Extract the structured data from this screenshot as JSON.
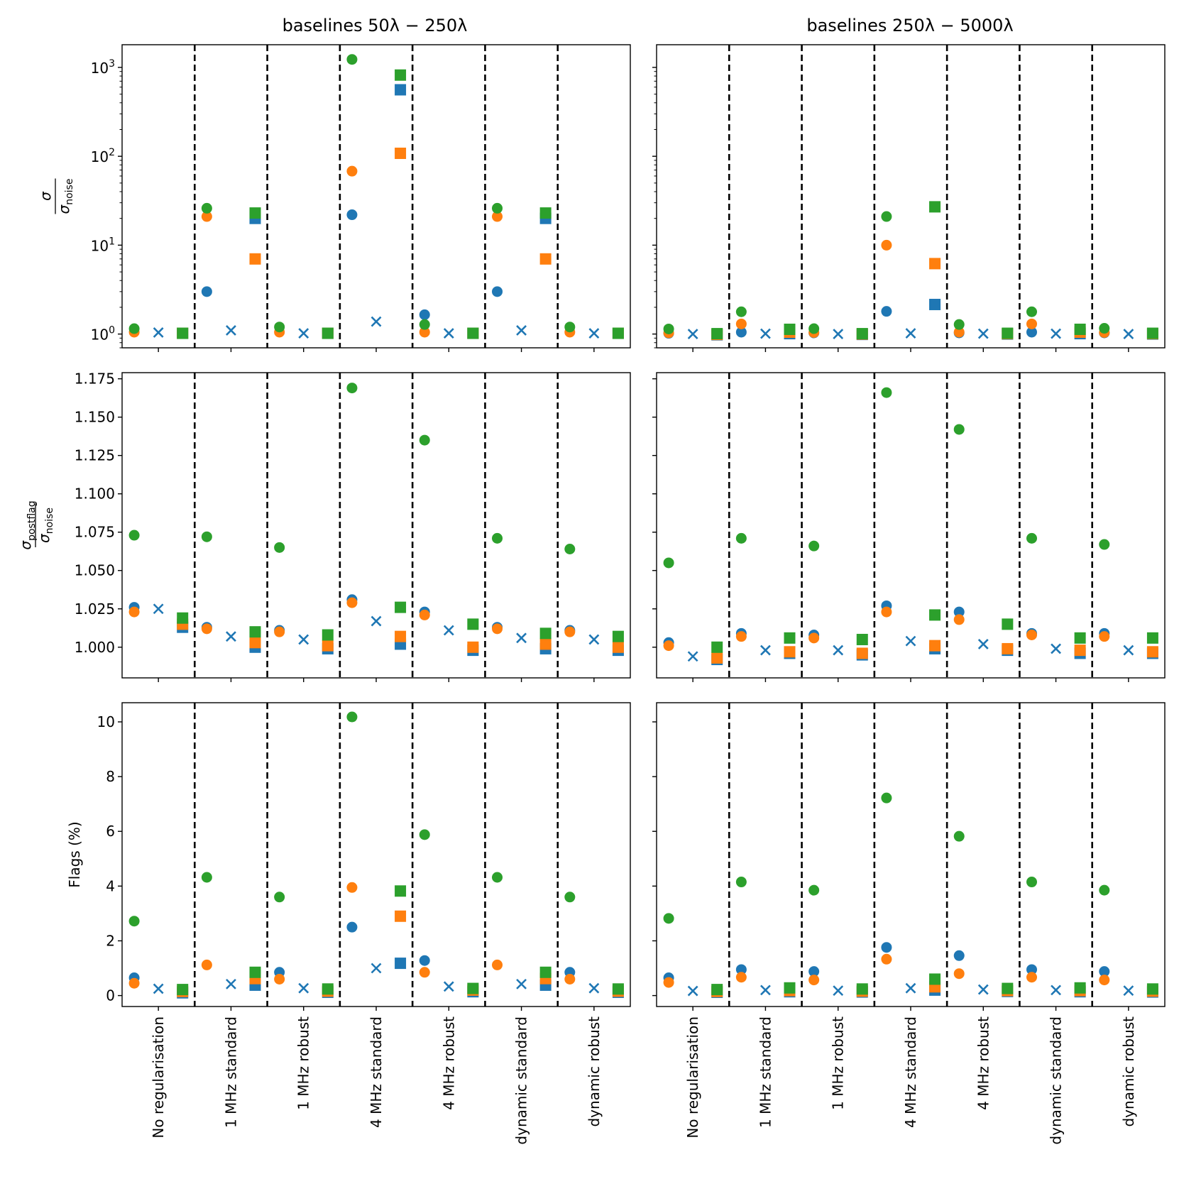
{
  "chart_data": {
    "type": "scatter",
    "columns": [
      {
        "id": "low",
        "title": "baselines 50λ − 250λ"
      },
      {
        "id": "high",
        "title": "baselines 250λ − 5000λ"
      }
    ],
    "categories": [
      "No regularisation",
      "1 MHz standard",
      "1 MHz robust",
      "4 MHz standard",
      "4 MHz robust",
      "dynamic standard",
      "dynamic robust"
    ],
    "marker_colors": {
      "blue": "#1f77b4",
      "orange": "#ff7f0e",
      "green": "#2ca02c"
    },
    "rows": [
      {
        "id": "sigma",
        "ylabel_num": "σ",
        "ylabel_den": "σ",
        "ylabel_den_sub": "noise",
        "scale": "log",
        "ylim": [
          0.7,
          1800
        ],
        "yticks": [
          {
            "v": 1,
            "base": "10",
            "exp": "0"
          },
          {
            "v": 10,
            "base": "10",
            "exp": "1"
          },
          {
            "v": 100,
            "base": "10",
            "exp": "2"
          },
          {
            "v": 1000,
            "base": "10",
            "exp": "3"
          }
        ],
        "show_tick_labels": [
          true,
          false
        ]
      },
      {
        "id": "postflag",
        "ylabel_num": "σ",
        "ylabel_num_sub": "postflag",
        "ylabel_den": "σ",
        "ylabel_den_sub": "noise",
        "scale": "linear",
        "ylim": [
          0.98,
          1.179
        ],
        "yticks": [
          {
            "v": 1.0,
            "label": "1.000"
          },
          {
            "v": 1.025,
            "label": "1.025"
          },
          {
            "v": 1.05,
            "label": "1.050"
          },
          {
            "v": 1.075,
            "label": "1.075"
          },
          {
            "v": 1.1,
            "label": "1.100"
          },
          {
            "v": 1.125,
            "label": "1.125"
          },
          {
            "v": 1.15,
            "label": "1.150"
          },
          {
            "v": 1.175,
            "label": "1.175"
          }
        ],
        "show_tick_labels": [
          true,
          false
        ]
      },
      {
        "id": "flags",
        "ylabel": "Flags (%)",
        "scale": "linear",
        "ylim": [
          -0.4,
          10.7
        ],
        "yticks": [
          {
            "v": 0,
            "label": "0"
          },
          {
            "v": 2,
            "label": "2"
          },
          {
            "v": 4,
            "label": "4"
          },
          {
            "v": 6,
            "label": "6"
          },
          {
            "v": 8,
            "label": "8"
          },
          {
            "v": 10,
            "label": "10"
          }
        ],
        "show_tick_labels": [
          true,
          false
        ]
      }
    ],
    "panels": {
      "sigma": {
        "low": {
          "circles": {
            "blue": [
              null,
              3.0,
              null,
              22,
              1.65,
              3.0,
              null
            ],
            "orange": [
              1.05,
              21,
              1.05,
              68,
              1.05,
              21,
              1.05
            ],
            "green": [
              1.15,
              26,
              1.2,
              1230,
              1.28,
              26,
              1.2
            ]
          },
          "x": [
            1.04,
            1.1,
            1.02,
            1.38,
            1.02,
            1.1,
            1.02
          ],
          "squares": {
            "blue": [
              1.02,
              20,
              1.02,
              560,
              1.02,
              20,
              1.02
            ],
            "orange": [
              1.02,
              7.0,
              1.02,
              108,
              1.02,
              7.0,
              1.02
            ],
            "green": [
              1.02,
              23,
              1.02,
              820,
              1.02,
              23,
              1.02
            ]
          }
        },
        "high": {
          "circles": {
            "blue": [
              1.02,
              1.05,
              1.03,
              1.8,
              1.03,
              1.05,
              1.03
            ],
            "orange": [
              1.03,
              1.3,
              1.04,
              10,
              1.05,
              1.3,
              1.04
            ],
            "green": [
              1.14,
              1.78,
              1.15,
              21,
              1.28,
              1.78,
              1.16
            ]
          },
          "x": [
            1.0,
            1.01,
            1.0,
            1.02,
            1.01,
            1.01,
            1.0
          ],
          "squares": {
            "blue": [
              0.98,
              1.01,
              0.99,
              2.15,
              1.0,
              1.01,
              1.0
            ],
            "orange": [
              0.99,
              1.05,
              1.0,
              6.2,
              1.01,
              1.05,
              1.01
            ],
            "green": [
              1.01,
              1.13,
              1.01,
              27,
              1.02,
              1.13,
              1.02
            ]
          }
        }
      },
      "postflag": {
        "low": {
          "circles": {
            "blue": [
              1.026,
              1.013,
              1.011,
              1.031,
              1.023,
              1.013,
              1.011
            ],
            "orange": [
              1.023,
              1.012,
              1.01,
              1.029,
              1.021,
              1.012,
              1.01
            ],
            "green": [
              1.073,
              1.072,
              1.065,
              1.169,
              1.135,
              1.071,
              1.064
            ]
          },
          "x": [
            1.025,
            1.007,
            1.005,
            1.017,
            1.011,
            1.006,
            1.005
          ],
          "squares": {
            "blue": [
              1.013,
              1.0,
              0.999,
              1.002,
              0.998,
              0.999,
              0.998
            ],
            "orange": [
              1.015,
              1.003,
              1.001,
              1.007,
              1.0,
              1.002,
              1.0
            ],
            "green": [
              1.019,
              1.01,
              1.008,
              1.026,
              1.015,
              1.009,
              1.007
            ]
          }
        },
        "high": {
          "circles": {
            "blue": [
              1.003,
              1.009,
              1.008,
              1.027,
              1.023,
              1.009,
              1.009
            ],
            "orange": [
              1.001,
              1.007,
              1.006,
              1.023,
              1.018,
              1.008,
              1.007
            ],
            "green": [
              1.055,
              1.071,
              1.066,
              1.166,
              1.142,
              1.071,
              1.067
            ]
          },
          "x": [
            0.994,
            0.998,
            0.998,
            1.004,
            1.002,
            0.999,
            0.998
          ],
          "squares": {
            "blue": [
              0.992,
              0.996,
              0.995,
              0.999,
              0.998,
              0.996,
              0.996
            ],
            "orange": [
              0.993,
              0.997,
              0.996,
              1.001,
              0.999,
              0.998,
              0.997
            ],
            "green": [
              1.0,
              1.006,
              1.005,
              1.021,
              1.015,
              1.006,
              1.006
            ]
          }
        }
      },
      "flags": {
        "low": {
          "circles": {
            "blue": [
              0.65,
              null,
              0.85,
              2.5,
              1.28,
              null,
              0.85
            ],
            "orange": [
              0.45,
              1.12,
              0.6,
              3.95,
              0.85,
              1.12,
              0.6
            ],
            "green": [
              2.72,
              4.32,
              3.6,
              10.18,
              5.88,
              4.32,
              3.6
            ]
          },
          "x": [
            0.25,
            0.42,
            0.27,
            1.0,
            0.33,
            0.42,
            0.27
          ],
          "squares": {
            "blue": [
              0.1,
              0.38,
              0.12,
              1.18,
              0.14,
              0.38,
              0.12
            ],
            "orange": [
              0.15,
              0.62,
              0.16,
              2.9,
              0.2,
              0.62,
              0.16
            ],
            "green": [
              0.22,
              0.85,
              0.24,
              3.82,
              0.26,
              0.85,
              0.24
            ]
          }
        },
        "high": {
          "circles": {
            "blue": [
              0.65,
              0.95,
              0.88,
              1.76,
              1.46,
              0.95,
              0.88
            ],
            "orange": [
              0.48,
              0.67,
              0.57,
              1.33,
              0.8,
              0.67,
              0.57
            ],
            "green": [
              2.82,
              4.15,
              3.85,
              7.22,
              5.82,
              4.15,
              3.85
            ]
          },
          "x": [
            0.17,
            0.2,
            0.18,
            0.27,
            0.22,
            0.2,
            0.18
          ],
          "squares": {
            "blue": [
              0.12,
              0.14,
              0.13,
              0.2,
              0.15,
              0.14,
              0.13
            ],
            "orange": [
              0.15,
              0.18,
              0.16,
              0.32,
              0.18,
              0.18,
              0.16
            ],
            "green": [
              0.22,
              0.28,
              0.24,
              0.6,
              0.26,
              0.28,
              0.24
            ]
          }
        }
      }
    }
  }
}
